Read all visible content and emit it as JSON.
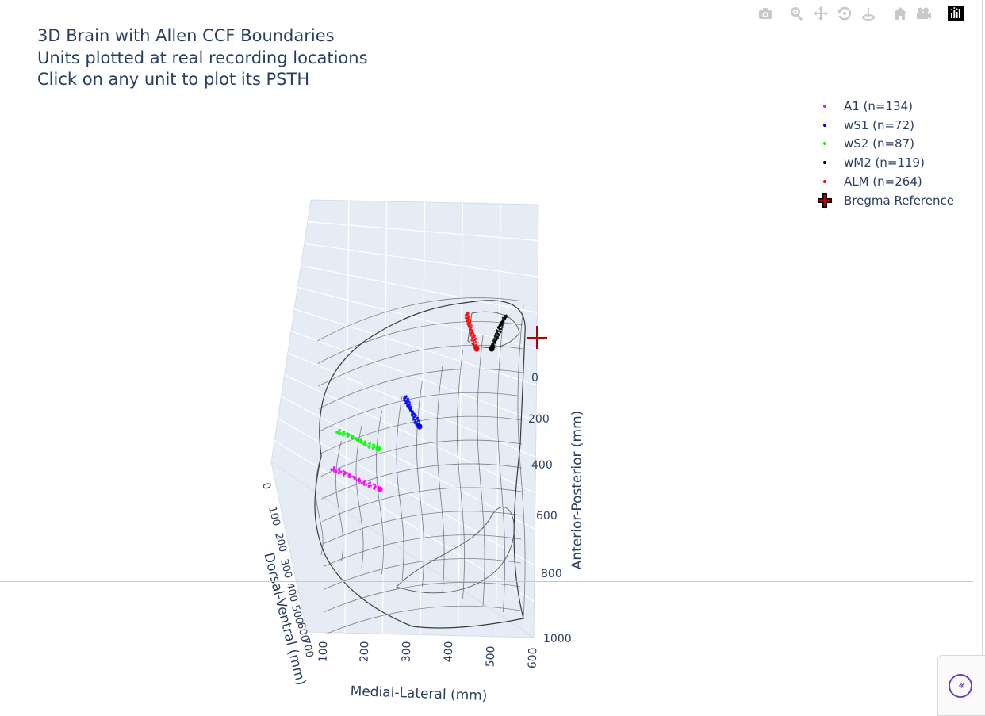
{
  "title": {
    "line1": "3D Brain with Allen CCF Boundaries",
    "line2": "Units plotted at real recording locations",
    "line3": "Click on any unit to plot its PSTH"
  },
  "modebar": {
    "icons": [
      "camera-icon",
      "zoom-icon",
      "pan-icon",
      "orbit-rotation-icon",
      "turntable-rotation-icon",
      "reset-camera-icon",
      "reset-last-view-icon",
      "plotly-logo-icon"
    ]
  },
  "legend": [
    {
      "label": "A1 (n=134)",
      "color": "#ff00ff",
      "symbol": "dot"
    },
    {
      "label": "wS1 (n=72)",
      "color": "#0000ff",
      "symbol": "dot"
    },
    {
      "label": "wS2 (n=87)",
      "color": "#00ff00",
      "symbol": "dot"
    },
    {
      "label": "wM2 (n=119)",
      "color": "#000000",
      "symbol": "dot"
    },
    {
      "label": "ALM (n=264)",
      "color": "#ff0000",
      "symbol": "dot"
    },
    {
      "label": "Bregma Reference",
      "color": "#c00000",
      "symbol": "cross"
    }
  ],
  "chart_data": {
    "type": "scatter",
    "projection": "3d",
    "axes": {
      "x": {
        "label": "Medial-Lateral (mm)",
        "ticks": [
          "100",
          "200",
          "300",
          "400",
          "500",
          "600"
        ]
      },
      "y": {
        "label": "Anterior-Posterior (mm)",
        "ticks": [
          "0",
          "200",
          "400",
          "600",
          "800",
          "1000"
        ]
      },
      "z": {
        "label": "Dorsal-Ventral (mm)",
        "ticks": [
          "0",
          "100",
          "200",
          "300",
          "400",
          "500",
          "600",
          "700"
        ]
      }
    },
    "background": "#e5ecf6",
    "grid": true,
    "series": [
      {
        "name": "A1 (n=134)",
        "color": "#ff00ff",
        "count": 134
      },
      {
        "name": "wS1 (n=72)",
        "color": "#0000ff",
        "count": 72
      },
      {
        "name": "wS2 (n=87)",
        "color": "#00ff00",
        "count": 87
      },
      {
        "name": "wM2 (n=119)",
        "color": "#000000",
        "count": 119
      },
      {
        "name": "ALM (n=264)",
        "color": "#ff0000",
        "count": 264
      },
      {
        "name": "Bregma Reference",
        "color": "#c00000",
        "count": 1
      }
    ]
  }
}
